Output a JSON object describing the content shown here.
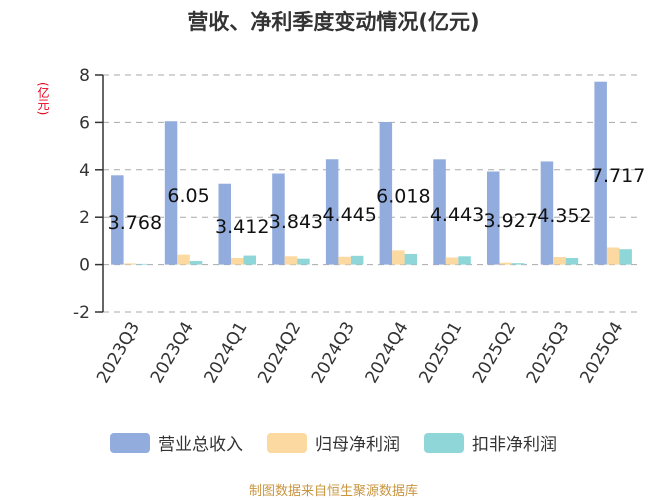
{
  "title": "营收、净利季度变动情况(亿元)",
  "unit": "(亿元)",
  "source": "制图数据来自恒生聚源数据库",
  "legend": [
    {
      "label": "营业总收入",
      "color": "#91acdd"
    },
    {
      "label": "归母净利润",
      "color": "#fbd9a0"
    },
    {
      "label": "扣非净利润",
      "color": "#8fd6d8"
    }
  ],
  "chart_data": {
    "type": "bar",
    "categories": [
      "2023Q3",
      "2023Q4",
      "2024Q1",
      "2024Q2",
      "2024Q3",
      "2024Q4",
      "2025Q1",
      "2025Q2",
      "2025Q3",
      "2025Q4"
    ],
    "series": [
      {
        "name": "营业总收入",
        "color": "#91acdd",
        "values": [
          3.768,
          6.05,
          3.412,
          3.843,
          4.445,
          6.018,
          4.443,
          3.927,
          4.352,
          7.717
        ]
      },
      {
        "name": "归母净利润",
        "color": "#fbd9a0",
        "values": [
          0.05,
          0.42,
          0.28,
          0.35,
          0.33,
          0.6,
          0.3,
          0.08,
          0.32,
          0.72
        ]
      },
      {
        "name": "扣非净利润",
        "color": "#8fd6d8",
        "values": [
          0.03,
          0.15,
          0.38,
          0.25,
          0.37,
          0.45,
          0.35,
          0.06,
          0.28,
          0.65
        ]
      }
    ],
    "data_labels": [
      "3.768",
      "6.05",
      "3.412",
      "3.843",
      "4.445",
      "6.018",
      "4.443",
      "3.927",
      "4.352",
      "7.717"
    ],
    "yticks": [
      -2,
      0,
      2,
      4,
      6,
      8
    ],
    "ylim": [
      -2,
      8
    ],
    "grid": true,
    "legend_position": "bottom"
  }
}
